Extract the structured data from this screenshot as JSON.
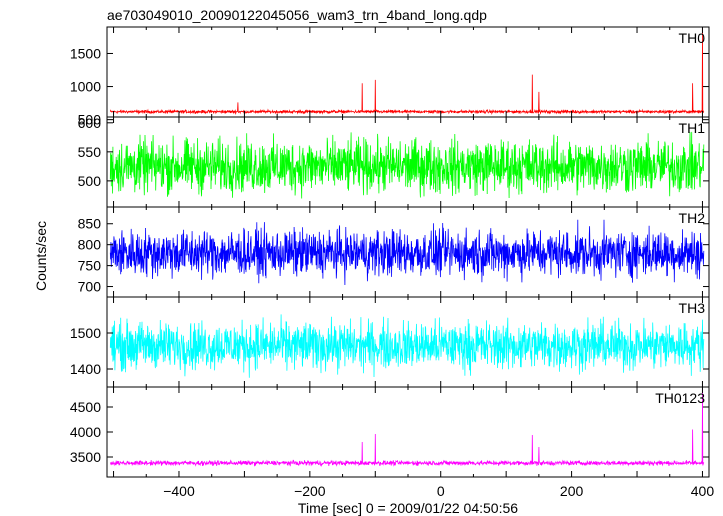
{
  "title": "ae703049010_20090122045056_wam3_trn_4band_long.qdp",
  "xlabel": "Time [sec] 0 = 2009/01/22 04:50:56",
  "ylabel": "Counts/sec",
  "chart_data": {
    "type": "line",
    "x_range": [
      -510,
      410
    ],
    "x_ticks": [
      -400,
      -200,
      0,
      200,
      400
    ],
    "x_tick_labels": [
      "−400",
      "−200",
      "0",
      "200",
      "400"
    ],
    "panels": [
      {
        "name": "TH0",
        "color": "#ff0000",
        "ylim": [
          540,
          1900
        ],
        "yticks": [
          500,
          1000,
          1500
        ],
        "ytick_labels": [
          "500",
          "1000",
          "1500"
        ],
        "base": 620,
        "noise": 22,
        "spikes": [
          [
            -310,
            760
          ],
          [
            -120,
            1050
          ],
          [
            -100,
            1100
          ],
          [
            140,
            1180
          ],
          [
            150,
            920
          ],
          [
            385,
            1050
          ],
          [
            400,
            1880
          ]
        ]
      },
      {
        "name": "TH1",
        "color": "#00ff00",
        "ylim": [
          455,
          610
        ],
        "yticks": [
          500,
          550,
          600
        ],
        "ytick_labels": [
          "500",
          "550",
          "600"
        ],
        "base": 525,
        "noise": 45,
        "spikes": []
      },
      {
        "name": "TH2",
        "color": "#0000ff",
        "ylim": [
          675,
          890
        ],
        "yticks": [
          700,
          750,
          800,
          850
        ],
        "ytick_labels": [
          "700",
          "750",
          "800",
          "850"
        ],
        "base": 780,
        "noise": 55,
        "spikes": []
      },
      {
        "name": "TH3",
        "color": "#00ffff",
        "ylim": [
          1350,
          1600
        ],
        "yticks": [
          1400,
          1500
        ],
        "ytick_labels": [
          "1400",
          "1500"
        ],
        "base": 1465,
        "noise": 65,
        "spikes": []
      },
      {
        "name": "TH0123",
        "color": "#ff00ff",
        "ylim": [
          3100,
          4900
        ],
        "yticks": [
          3500,
          4000,
          4500
        ],
        "ytick_labels": [
          "3500",
          "4000",
          "4500"
        ],
        "base": 3380,
        "noise": 45,
        "spikes": [
          [
            -120,
            3800
          ],
          [
            -100,
            3960
          ],
          [
            140,
            3940
          ],
          [
            150,
            3700
          ],
          [
            385,
            4050
          ],
          [
            400,
            4850
          ]
        ]
      }
    ]
  }
}
